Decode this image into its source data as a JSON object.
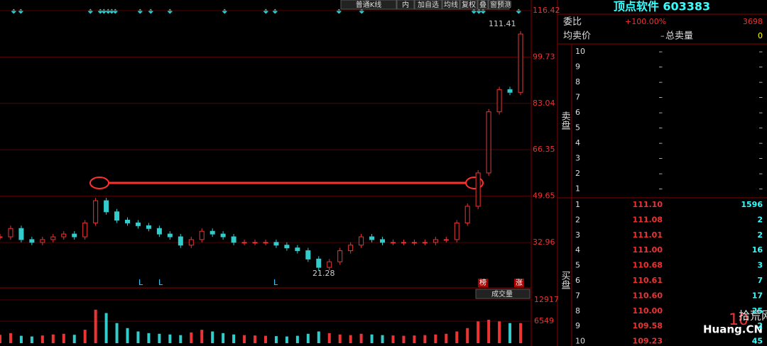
{
  "toolbar": [
    "普通K线",
    "内",
    "加自选",
    "均线",
    "复权",
    "叠",
    "窗",
    "预测"
  ],
  "price_axis": {
    "ticks": [
      116.42,
      99.73,
      83.04,
      66.35,
      49.65,
      32.96
    ]
  },
  "volume_axis": {
    "ticks": [
      12917,
      6549
    ]
  },
  "annotations": {
    "high": "111.41",
    "low": "21.28",
    "markers": [
      "L",
      "L",
      "L"
    ],
    "tag1": "榜",
    "tag2": "涨",
    "volume_label": "成交量"
  },
  "closes": [
    35,
    38,
    34,
    33,
    34,
    35,
    36,
    35,
    40,
    48,
    44,
    41,
    40,
    39,
    38,
    36,
    35,
    32,
    34,
    37,
    36,
    35,
    33,
    33,
    33,
    33,
    32,
    31,
    30,
    27,
    24,
    26,
    30,
    32,
    35,
    34,
    33,
    33,
    33,
    33,
    33,
    34,
    34,
    40,
    46,
    58,
    80,
    88,
    87,
    108
  ],
  "volumes": [
    2500,
    3000,
    2200,
    2000,
    2300,
    2600,
    2800,
    2500,
    4000,
    10000,
    9000,
    6000,
    4500,
    3500,
    3000,
    2800,
    2600,
    2400,
    3200,
    4000,
    3500,
    3000,
    2600,
    2400,
    2300,
    2200,
    2100,
    2000,
    2200,
    2800,
    3500,
    3000,
    2600,
    2400,
    2800,
    2600,
    2400,
    2300,
    2200,
    2300,
    2400,
    2600,
    2800,
    3500,
    4500,
    6500,
    7000,
    6500,
    6000,
    6000
  ],
  "panel": {
    "title": "顶点软件 603383",
    "weibi_label": "委比",
    "weibi": "+100.00%",
    "weibi_vol": "3698",
    "avg_sell_label": "均卖价",
    "avg_sell": "–",
    "total_sell_label": "总卖量",
    "total_sell": "0",
    "sell_label": "卖盘",
    "buy_label": "买盘",
    "sell": [
      [
        "10",
        "–",
        "–"
      ],
      [
        "9",
        "–",
        "–"
      ],
      [
        "8",
        "–",
        "–"
      ],
      [
        "7",
        "–",
        "–"
      ],
      [
        "6",
        "–",
        "–"
      ],
      [
        "5",
        "–",
        "–"
      ],
      [
        "4",
        "–",
        "–"
      ],
      [
        "3",
        "–",
        "–"
      ],
      [
        "2",
        "–",
        "–"
      ],
      [
        "1",
        "–",
        "–"
      ]
    ],
    "buy": [
      [
        "1",
        "111.10",
        "1596"
      ],
      [
        "2",
        "111.08",
        "2"
      ],
      [
        "3",
        "111.01",
        "2"
      ],
      [
        "4",
        "111.00",
        "16"
      ],
      [
        "5",
        "110.68",
        "3"
      ],
      [
        "6",
        "110.61",
        "7"
      ],
      [
        "7",
        "110.60",
        "17"
      ],
      [
        "8",
        "110.00",
        "25"
      ],
      [
        "9",
        "109.58",
        "2"
      ],
      [
        "10",
        "109.23",
        "45"
      ]
    ]
  },
  "watermark": {
    "logo": "10",
    "name": "拾荒网",
    "site": "Huang.CN"
  }
}
